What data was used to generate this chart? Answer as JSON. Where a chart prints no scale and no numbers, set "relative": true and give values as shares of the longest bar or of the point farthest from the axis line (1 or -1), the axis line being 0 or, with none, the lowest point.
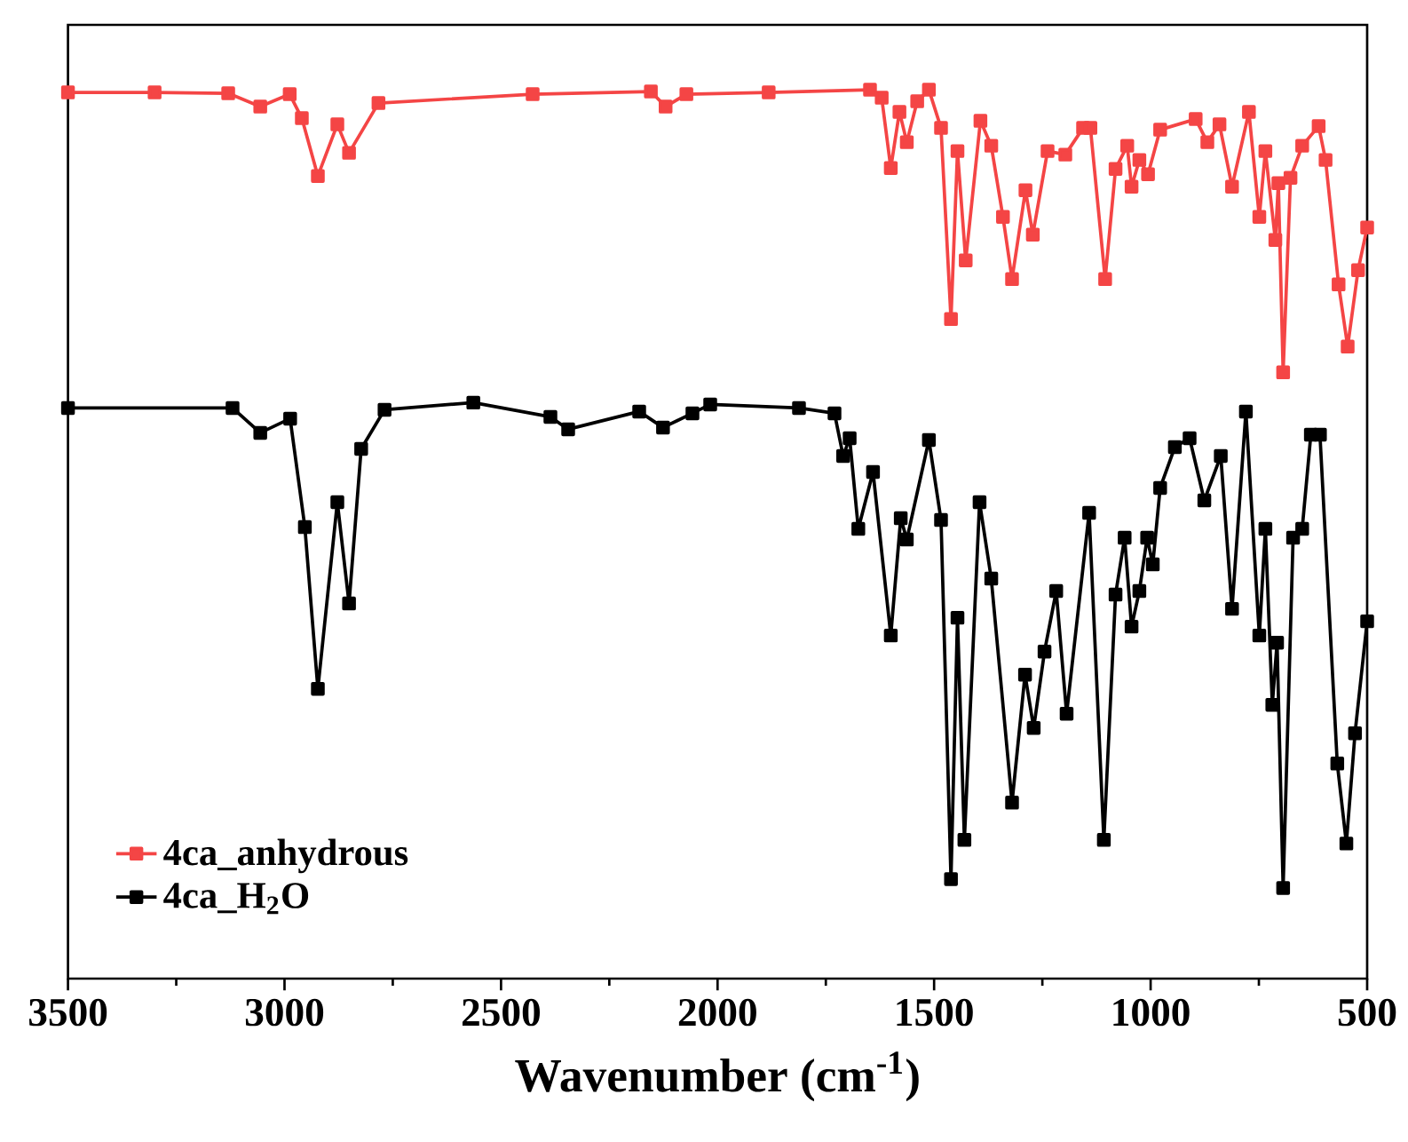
{
  "chart_data": {
    "type": "line",
    "xlabel": "Wavenumber (cm$^{-1}$)",
    "relative": true,
    "xlim": [
      3500,
      500
    ],
    "xticks": [
      3500,
      3000,
      2500,
      2000,
      1500,
      1000,
      500
    ],
    "legend": "bottom left",
    "marker": "square",
    "series": [
      {
        "name": "4ca_anhydrous",
        "color": "#f44545",
        "x": [
          3500,
          3300,
          3130,
          3056,
          2988,
          2960,
          2923,
          2878,
          2851,
          2783,
          2427,
          2154,
          2120,
          2072,
          1882,
          1648,
          1621,
          1600,
          1580,
          1563,
          1539,
          1512,
          1484,
          1461,
          1446,
          1427,
          1393,
          1368,
          1341,
          1320,
          1289,
          1272,
          1238,
          1197,
          1156,
          1139,
          1105,
          1081,
          1054,
          1044,
          1026,
          1006,
          978,
          896,
          869,
          841,
          812,
          773,
          749,
          735,
          712,
          705,
          694,
          677,
          650,
          612,
          596,
          566,
          545,
          521,
          500
        ],
        "values": [
          0.997,
          0.997,
          0.996,
          0.981,
          0.995,
          0.968,
          0.903,
          0.961,
          0.929,
          0.985,
          0.995,
          0.998,
          0.981,
          0.995,
          0.997,
          1.0,
          0.991,
          0.912,
          0.975,
          0.941,
          0.987,
          1.0,
          0.957,
          0.742,
          0.931,
          0.808,
          0.965,
          0.937,
          0.857,
          0.787,
          0.887,
          0.837,
          0.931,
          0.927,
          0.957,
          0.957,
          0.787,
          0.911,
          0.937,
          0.891,
          0.921,
          0.905,
          0.955,
          0.967,
          0.941,
          0.961,
          0.891,
          0.975,
          0.857,
          0.931,
          0.831,
          0.895,
          0.682,
          0.901,
          0.937,
          0.959,
          0.921,
          0.781,
          0.711,
          0.797,
          0.845
        ]
      },
      {
        "name": "4ca_H$_{2}$O",
        "color": "#000000",
        "x": [
          3500,
          3120,
          3056,
          2987,
          2953,
          2923,
          2878,
          2851,
          2823,
          2769,
          2564,
          2386,
          2345,
          2181,
          2126,
          2058,
          2017,
          1812,
          1730,
          1710,
          1695,
          1675,
          1641,
          1600,
          1577,
          1563,
          1512,
          1484,
          1461,
          1446,
          1430,
          1395,
          1368,
          1320,
          1290,
          1270,
          1245,
          1218,
          1194,
          1142,
          1108,
          1081,
          1060,
          1044,
          1026,
          1008,
          995,
          978,
          944,
          910,
          876,
          838,
          812,
          780,
          749,
          735,
          719,
          708,
          694,
          671,
          650,
          630,
          609,
          569,
          548,
          528,
          500
        ],
        "values": [
          0.642,
          0.642,
          0.614,
          0.63,
          0.508,
          0.326,
          0.536,
          0.422,
          0.596,
          0.64,
          0.648,
          0.632,
          0.618,
          0.638,
          0.62,
          0.636,
          0.646,
          0.642,
          0.636,
          0.588,
          0.608,
          0.506,
          0.57,
          0.386,
          0.518,
          0.494,
          0.606,
          0.516,
          0.112,
          0.406,
          0.156,
          0.536,
          0.45,
          0.198,
          0.342,
          0.282,
          0.368,
          0.436,
          0.298,
          0.524,
          0.156,
          0.432,
          0.496,
          0.396,
          0.436,
          0.496,
          0.466,
          0.552,
          0.598,
          0.608,
          0.538,
          0.588,
          0.416,
          0.638,
          0.386,
          0.506,
          0.308,
          0.378,
          0.102,
          0.496,
          0.506,
          0.612,
          0.612,
          0.242,
          0.152,
          0.276,
          0.402
        ]
      }
    ]
  }
}
